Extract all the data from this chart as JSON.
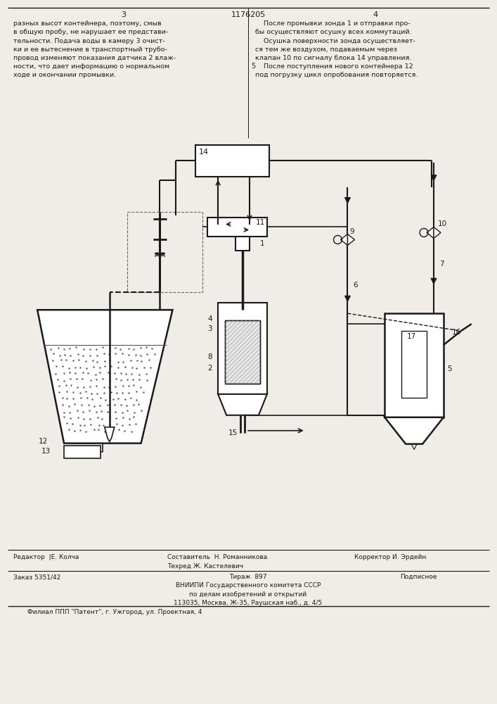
{
  "page_width": 7.07,
  "page_height": 10.0,
  "bg_color": "#f0ede8",
  "text_color": "#1a1a1a",
  "line_color": "#1a1a1a",
  "page_num_left": "3",
  "page_num_center": "1176205",
  "page_num_right": "4",
  "col_num": "5",
  "left_text": "разных высот контейнера, поэтому, смыв\nв общую пробу, не нарушает ее представи-\nтельности. Подача воды в камеру 3 очист-\nки и ее вытеснение в транспортный трубо-\nпровод изменяют показания датчика 2 влаж-\nности, что дает информацию о нормальном\nходе и окончании промывки.",
  "right_text": "    После промывки зонда 1 и отправки про-\nбы осуществляют осушку всех коммутаций.\n    Осушка поверхности зонда осуществляет-\nся тем же воздухом, подаваемым через\nклапан 10 по сигналу блока 14 управления.\n    После поступления нового контейнера 12\nпод погрузку цикл опробования повторяется.",
  "footer_editor": "Редактор  |Е. Колча",
  "footer_composer": "Составитель  Н. Романникова\nТехред Ж. Кастелевич",
  "footer_corrector": "Корректор И. Эрдейн",
  "footer_order": "Заказ 5351/42",
  "footer_circulation": "Тираж  897",
  "footer_subscription": "Подписное",
  "footer_vniipи": "ВНИИПИ Государственного комитета СССР\nпо делам изобретений и открытий\n113035, Москва, Ж-35, Раушская наб., д. 4/5",
  "footer_filial": "Филиал ППП \"Патент\", г. Ужгород, ул. Проектная, 4"
}
